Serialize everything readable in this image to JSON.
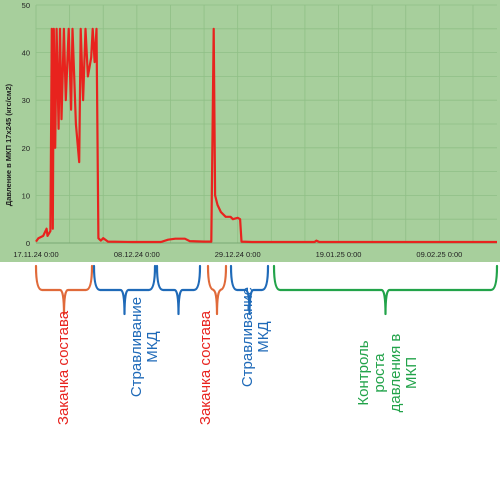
{
  "chart_data": {
    "type": "line",
    "title": "",
    "ylabel": "Давление в МКП 17х245 (кгс/см2)",
    "xlabel": "",
    "ylim": [
      0,
      50
    ],
    "y_ticks": [
      0,
      5,
      10,
      15,
      20,
      25,
      30,
      35,
      40,
      45,
      50
    ],
    "x_range_days": [
      0,
      96
    ],
    "x_tick_labels": [
      {
        "label": "17.11.24 0:00",
        "day": 0
      },
      {
        "label": "08.12.24 0:00",
        "day": 21
      },
      {
        "label": "29.12.24 0:00",
        "day": 42
      },
      {
        "label": "19.01.25 0:00",
        "day": 63
      },
      {
        "label": "09.02.25 0:00",
        "day": 84
      }
    ],
    "grid": true,
    "line_color": "#e8231e",
    "background_color": "#a7cf9c",
    "series": [
      {
        "name": "",
        "points": [
          [
            0.0,
            0.3
          ],
          [
            0.5,
            1.0
          ],
          [
            1.5,
            1.5
          ],
          [
            2.2,
            3.0
          ],
          [
            2.4,
            1.5
          ],
          [
            3.0,
            2.5
          ],
          [
            3.3,
            45
          ],
          [
            3.5,
            3.0
          ],
          [
            3.7,
            45
          ],
          [
            4.0,
            20
          ],
          [
            4.3,
            45
          ],
          [
            4.7,
            24
          ],
          [
            5.0,
            45
          ],
          [
            5.3,
            26
          ],
          [
            5.8,
            45
          ],
          [
            6.2,
            30
          ],
          [
            6.8,
            45
          ],
          [
            7.3,
            28
          ],
          [
            7.6,
            45
          ],
          [
            8.3,
            25
          ],
          [
            9.0,
            17
          ],
          [
            9.3,
            45
          ],
          [
            9.8,
            30
          ],
          [
            10.3,
            45
          ],
          [
            10.8,
            35
          ],
          [
            11.5,
            39
          ],
          [
            11.8,
            45
          ],
          [
            12.2,
            38
          ],
          [
            12.6,
            45
          ],
          [
            13.0,
            1.0
          ],
          [
            13.5,
            0.5
          ],
          [
            14.0,
            1.0
          ],
          [
            15.0,
            0.3
          ],
          [
            20.0,
            0.2
          ],
          [
            26.0,
            0.2
          ],
          [
            27.5,
            0.7
          ],
          [
            29.0,
            0.9
          ],
          [
            31.0,
            0.9
          ],
          [
            32.0,
            0.4
          ],
          [
            35.0,
            0.3
          ],
          [
            36.5,
            0.3
          ],
          [
            37.0,
            45
          ],
          [
            37.3,
            10
          ],
          [
            37.8,
            8.0
          ],
          [
            38.5,
            6.5
          ],
          [
            39.0,
            6.0
          ],
          [
            39.5,
            5.5
          ],
          [
            40.5,
            5.5
          ],
          [
            41.0,
            5.0
          ],
          [
            42.0,
            5.3
          ],
          [
            42.5,
            5.0
          ],
          [
            42.8,
            0.3
          ],
          [
            45.0,
            0.2
          ],
          [
            58.0,
            0.2
          ],
          [
            58.4,
            0.5
          ],
          [
            59.0,
            0.2
          ],
          [
            70.0,
            0.2
          ],
          [
            80.0,
            0.2
          ],
          [
            96.0,
            0.2
          ]
        ]
      }
    ]
  },
  "annotations": [
    {
      "text": "Закачка состава",
      "color": "red"
    },
    {
      "text": "Стравливание\nМКД",
      "color": "blue"
    },
    {
      "text": "Закачка состава",
      "color": "red"
    },
    {
      "text": "Стравливание\nМКД",
      "color": "blue"
    },
    {
      "text": "Контроль\nроста\nдавления в\nМКП",
      "color": "green"
    }
  ],
  "bracket_colors": {
    "red": "#e06a3a",
    "blue": "#1f6ab8",
    "green": "#22a34a"
  }
}
